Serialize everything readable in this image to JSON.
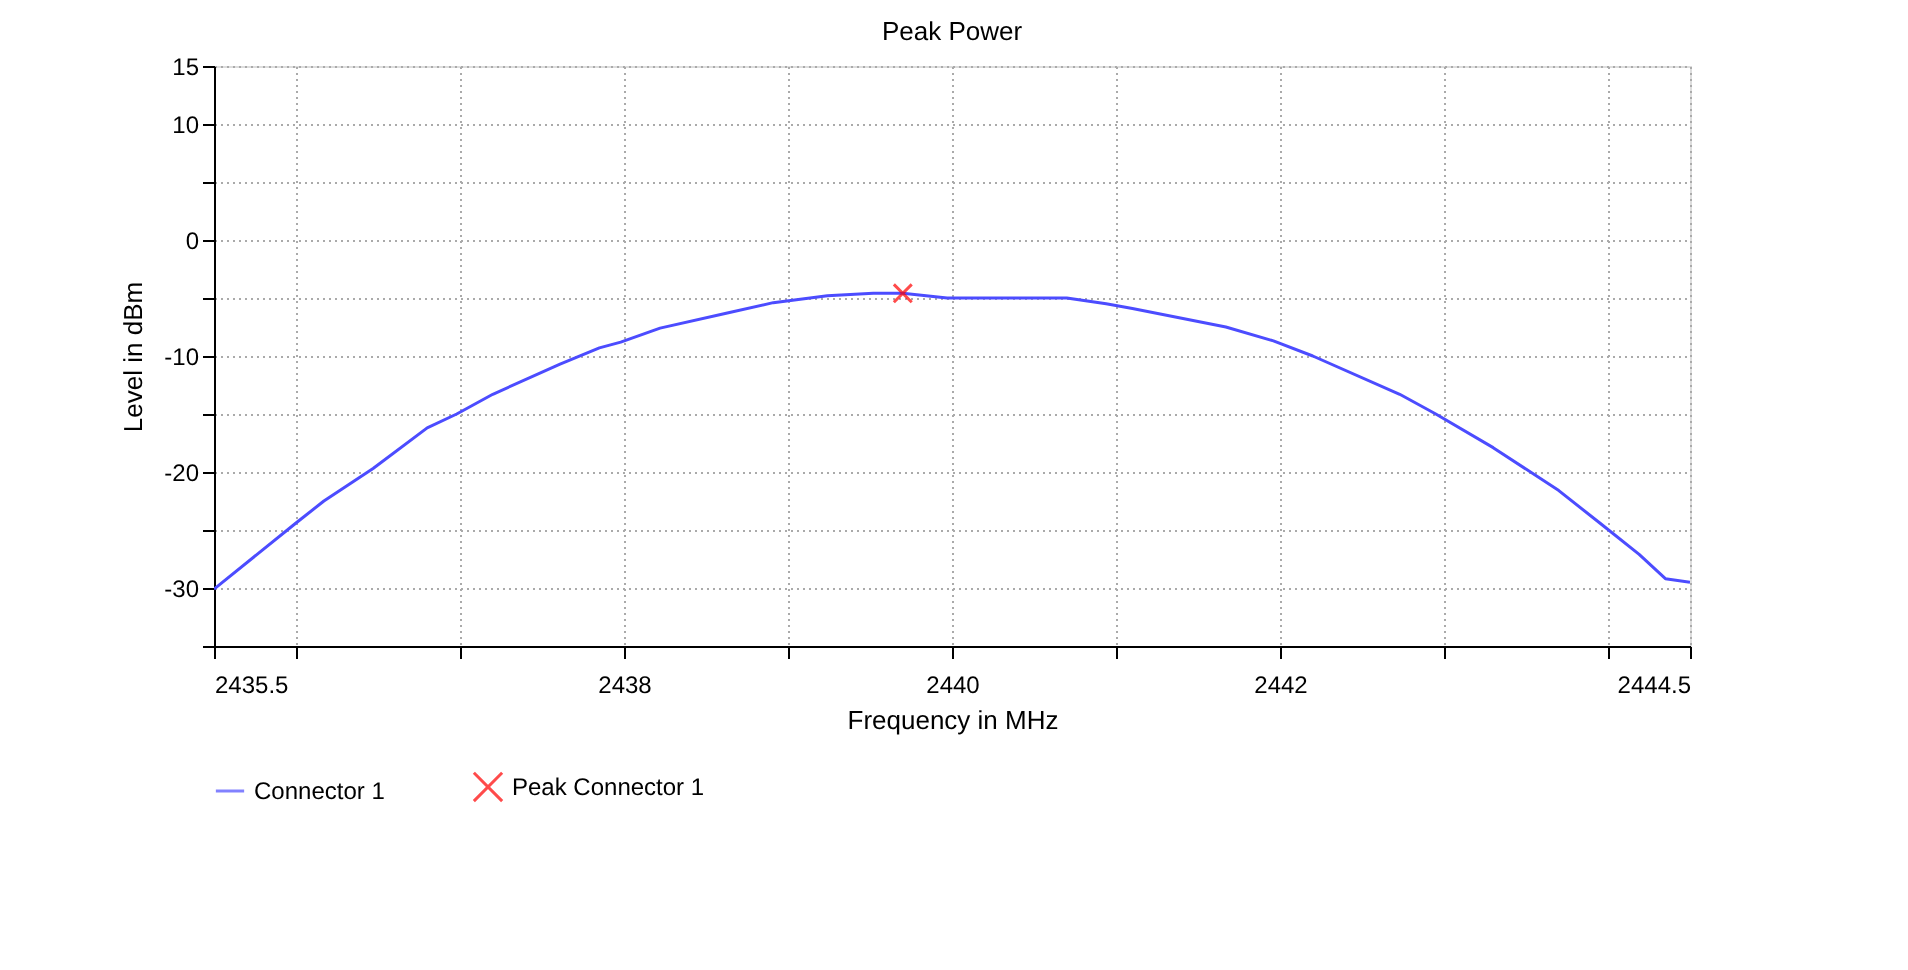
{
  "chart_data": {
    "type": "line",
    "title": "Peak Power",
    "xlabel": "Frequency in MHz",
    "ylabel": "Level in dBm",
    "xlim": [
      2435.5,
      2444.5
    ],
    "xticks": [
      2435.5,
      {
        "value": 2436,
        "label": null
      },
      {
        "value": 2437,
        "label": null
      },
      2438,
      {
        "value": 2439,
        "label": null
      },
      2440,
      {
        "value": 2441,
        "label": null
      },
      2442,
      {
        "value": 2443,
        "label": null
      },
      {
        "value": 2444,
        "label": null
      },
      2444.5
    ],
    "ylim": [
      -35,
      15
    ],
    "yticks": [
      {
        "value": -35,
        "label": null
      },
      -30,
      {
        "value": -25,
        "label": null
      },
      -20,
      {
        "value": -15,
        "label": null
      },
      -10,
      {
        "value": -5,
        "label": null
      },
      0,
      {
        "value": 5,
        "label": null
      },
      10,
      15
    ],
    "grid": true,
    "legend": "bottom",
    "series": [
      {
        "name": "Connector 1",
        "color": "#4c4cff",
        "marker": "none",
        "x": [
          2435.5,
          2436.0,
          2436.17,
          2436.47,
          2436.8,
          2436.98,
          2437.2,
          2437.61,
          2437.85,
          2437.98,
          2438.22,
          2438.63,
          2438.91,
          2439.24,
          2439.52,
          2439.7,
          2439.97,
          2440.7,
          2440.94,
          2441.1,
          2441.67,
          2441.96,
          2442.2,
          2442.73,
          2442.95,
          2443.3,
          2443.7,
          2443.95,
          2444.19,
          2444.35,
          2444.5
        ],
        "values": [
          -30.1,
          -24.4,
          -22.5,
          -19.7,
          -16.2,
          -15.0,
          -13.3,
          -10.7,
          -9.3,
          -8.8,
          -7.6,
          -6.3,
          -5.4,
          -4.8,
          -4.6,
          -4.6,
          -5.0,
          -5.0,
          -5.5,
          -5.9,
          -7.5,
          -8.7,
          -10.0,
          -13.3,
          -15.0,
          -17.9,
          -21.6,
          -24.4,
          -27.1,
          -29.2,
          -29.5
        ]
      },
      {
        "name": "Peak Connector 1",
        "type": "scatter",
        "color": "#ff0000",
        "marker": "cross",
        "x": [
          2439.7
        ],
        "values": [
          -4.6
        ]
      }
    ]
  }
}
